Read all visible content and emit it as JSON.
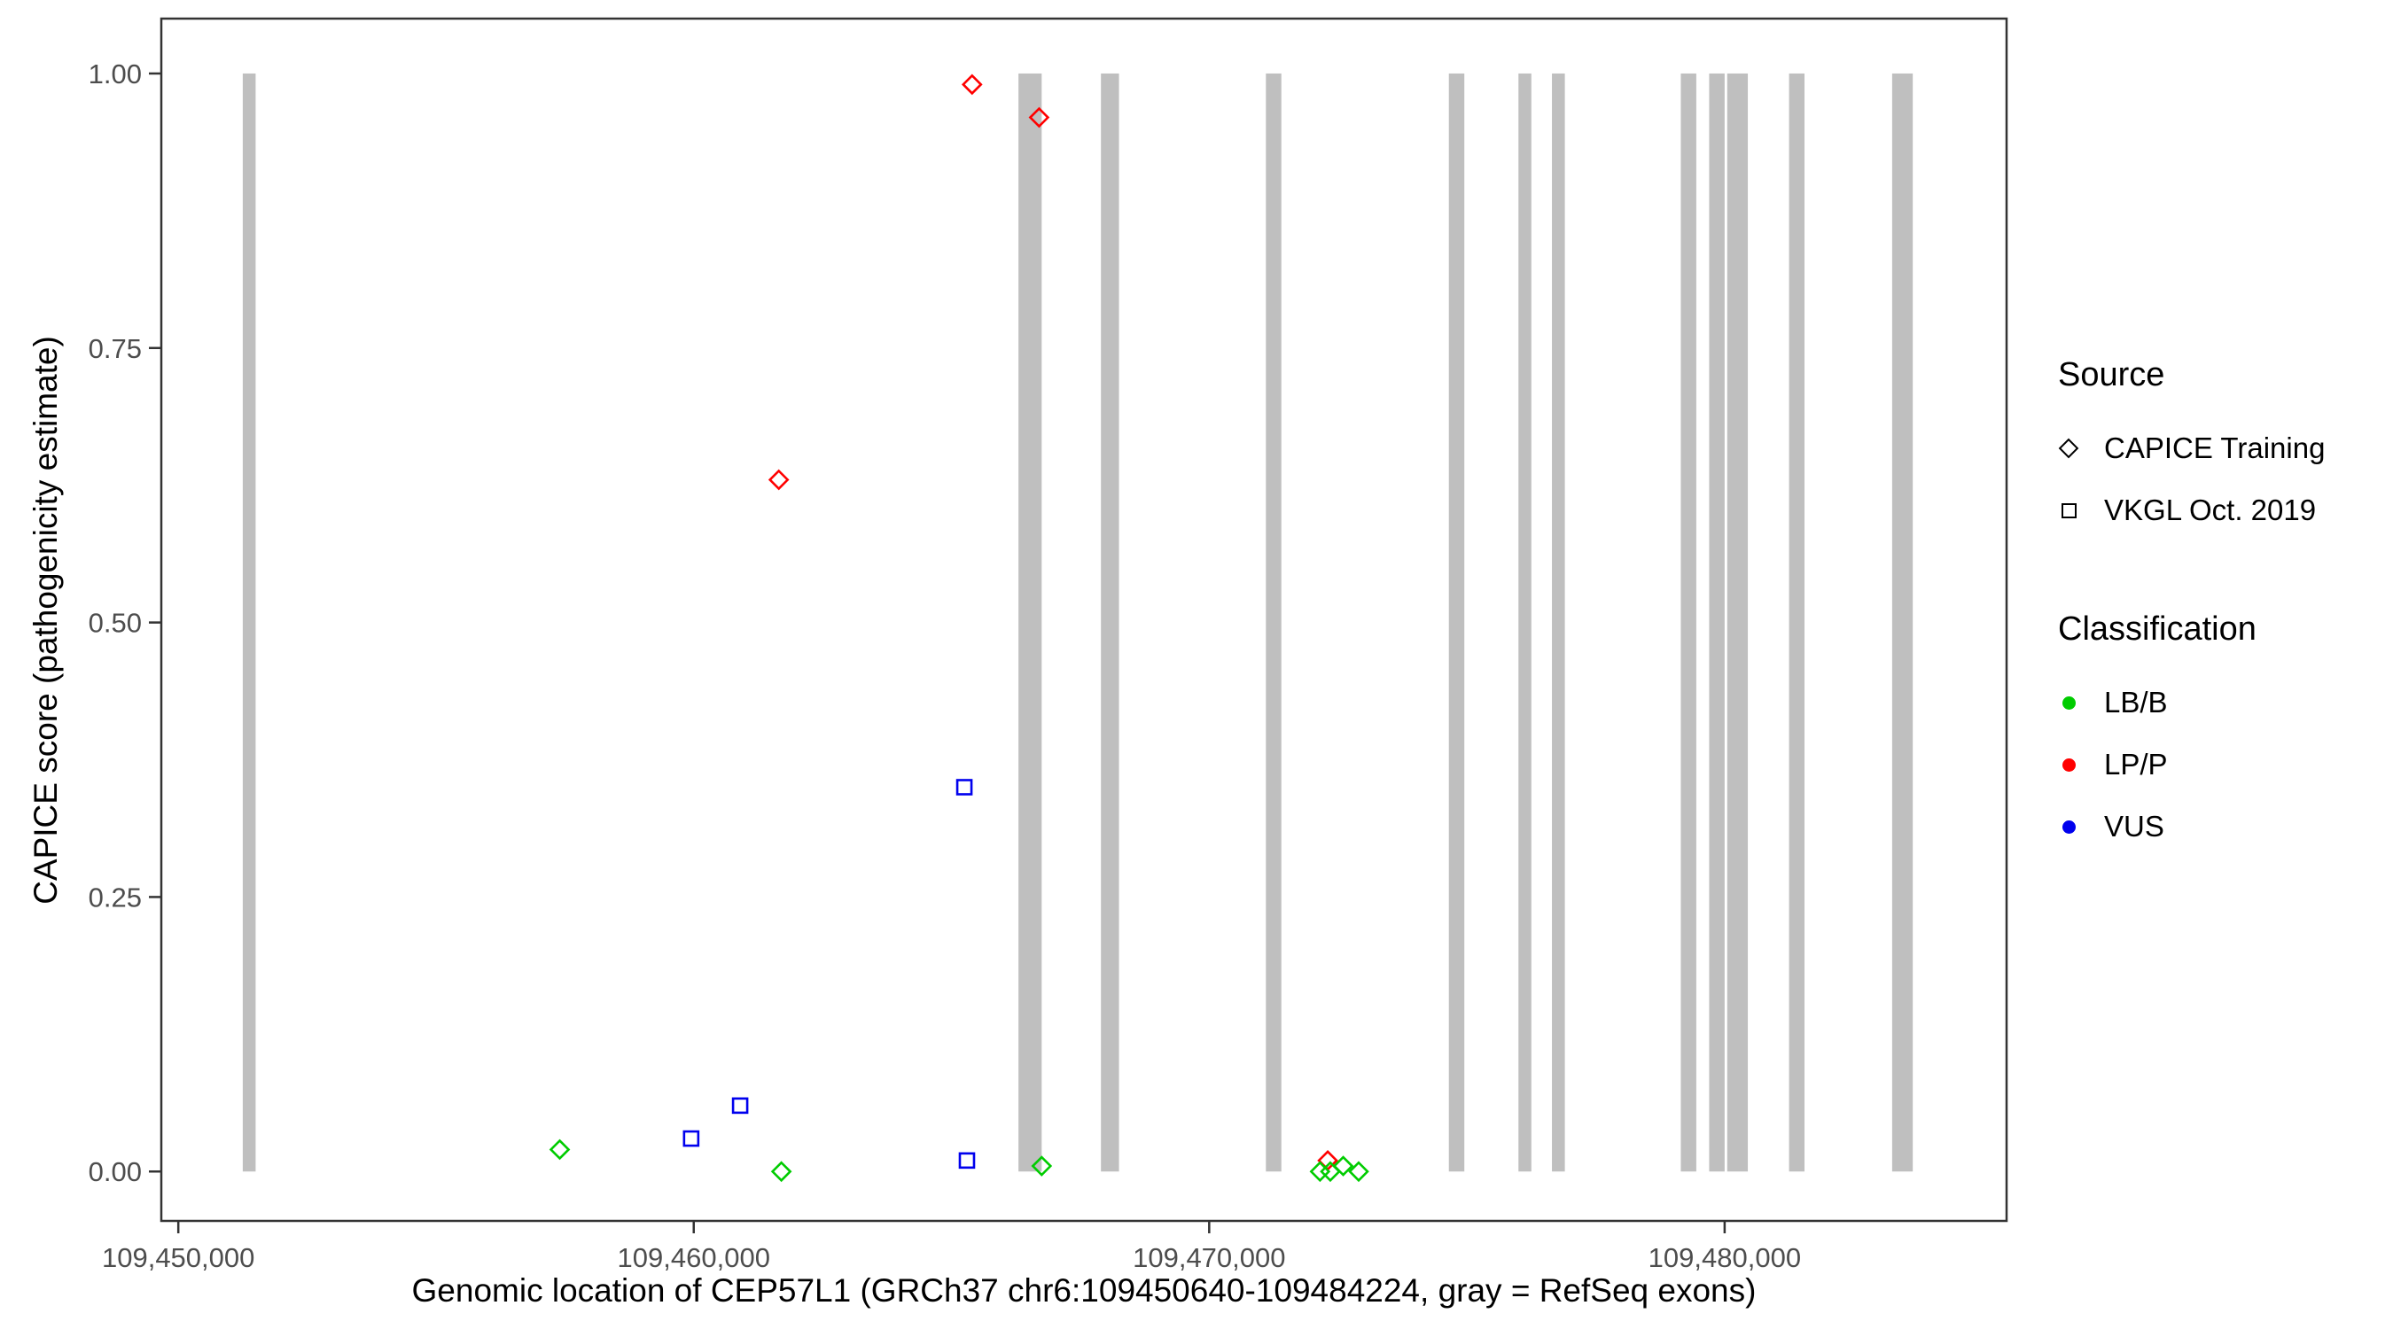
{
  "figure": {
    "background": "#FFFFFF",
    "panel_border_color": "#333333",
    "tick_label_color": "#4D4D4D"
  },
  "axes": {
    "x": {
      "label": "Genomic location of CEP57L1 (GRCh37 chr6:109450640-109484224, gray = RefSeq exons)",
      "ticks": [
        109450000,
        109460000,
        109470000,
        109480000
      ],
      "tick_labels": [
        "109,450,000",
        "109,460,000",
        "109,470,000",
        "109,480,000"
      ]
    },
    "y": {
      "label": "CAPICE score (pathogenicity estimate)",
      "ticks": [
        0,
        0.25,
        0.5,
        0.75,
        1
      ],
      "tick_labels": [
        "0.00",
        "0.25",
        "0.50",
        "0.75",
        "1.00"
      ]
    }
  },
  "legend": {
    "source": {
      "title": "Source",
      "items": [
        {
          "label": "CAPICE Training",
          "shape": "diamond"
        },
        {
          "label": "VKGL Oct. 2019",
          "shape": "square"
        }
      ]
    },
    "classification": {
      "title": "Classification",
      "items": [
        {
          "label": "LB/B",
          "color": "#00CC00"
        },
        {
          "label": "LP/P",
          "color": "#FF0000"
        },
        {
          "label": "VUS",
          "color": "#0000EE"
        }
      ]
    }
  },
  "chart_data": {
    "type": "scatter",
    "title": "",
    "xlabel": "Genomic location of CEP57L1 (GRCh37 chr6:109450640-109484224, gray = RefSeq exons)",
    "ylabel": "CAPICE score (pathogenicity estimate)",
    "xlim": [
      109449670,
      109485470
    ],
    "ylim": [
      -0.045,
      1.05
    ],
    "grid": false,
    "legend_position": "right",
    "exon_color": "#BFBFBF",
    "exons_note": "gray vertical bars = RefSeq exons, drawn from y=0 to y=1",
    "exons": [
      {
        "start": 109451250,
        "end": 109451500
      },
      {
        "start": 109466300,
        "end": 109466750
      },
      {
        "start": 109467900,
        "end": 109468250
      },
      {
        "start": 109471100,
        "end": 109471400
      },
      {
        "start": 109474650,
        "end": 109474950
      },
      {
        "start": 109476000,
        "end": 109476250
      },
      {
        "start": 109476650,
        "end": 109476900
      },
      {
        "start": 109479150,
        "end": 109479450
      },
      {
        "start": 109479700,
        "end": 109480000
      },
      {
        "start": 109480050,
        "end": 109480450
      },
      {
        "start": 109481250,
        "end": 109481550
      },
      {
        "start": 109483250,
        "end": 109483650
      }
    ],
    "series": [
      {
        "name": "CAPICE Training / LP/P",
        "source": "CAPICE Training",
        "classification": "LP/P",
        "shape": "diamond",
        "color": "#FF0000",
        "points": [
          [
            109465400,
            0.99
          ],
          [
            109466700,
            0.96
          ],
          [
            109461650,
            0.63
          ],
          [
            109472300,
            0.01
          ]
        ]
      },
      {
        "name": "CAPICE Training / LB/B",
        "source": "CAPICE Training",
        "classification": "LB/B",
        "shape": "diamond",
        "color": "#00CC00",
        "points": [
          [
            109457400,
            0.02
          ],
          [
            109461700,
            0.0
          ],
          [
            109466750,
            0.005
          ],
          [
            109472150,
            0.0
          ],
          [
            109472350,
            0.0
          ],
          [
            109472600,
            0.005
          ],
          [
            109472900,
            0.0
          ]
        ]
      },
      {
        "name": "VKGL Oct. 2019 / VUS",
        "source": "VKGL Oct. 2019",
        "classification": "VUS",
        "shape": "square",
        "color": "#0000EE",
        "points": [
          [
            109459950,
            0.03
          ],
          [
            109460900,
            0.06
          ],
          [
            109465250,
            0.35
          ],
          [
            109465300,
            0.01
          ]
        ]
      }
    ]
  }
}
